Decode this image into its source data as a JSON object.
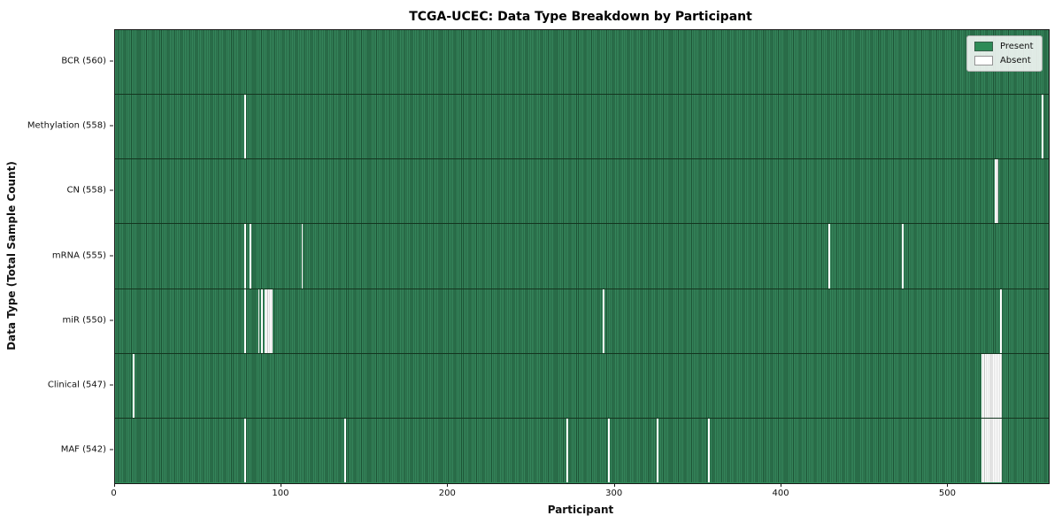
{
  "chart_data": {
    "type": "heatmap",
    "title": "TCGA-UCEC: Data Type Breakdown by Participant",
    "xlabel": "Participant",
    "ylabel": "Data Type (Total Sample Count)",
    "n_participants": 560,
    "x_ticks": [
      0,
      100,
      200,
      300,
      400,
      500
    ],
    "legend_position": "upper right",
    "grid": false,
    "legend": [
      {
        "label": "Present",
        "color": "#2e8b57"
      },
      {
        "label": "Absent",
        "color": "#ffffff"
      }
    ],
    "colors": {
      "present_fill": "#2e8b57",
      "present_stripe_light": "#35855b",
      "present_stripe_dark": "#1d5335",
      "absent_fill": "#ffffff",
      "row_separator": "#14351f",
      "spine": "#1a1a1a"
    },
    "rows": [
      {
        "label": "BCR (560)",
        "data_type": "BCR",
        "total_samples": 560,
        "absent_participants": []
      },
      {
        "label": "Methylation (558)",
        "data_type": "Methylation",
        "total_samples": 558,
        "absent_participants": [
          78,
          556
        ]
      },
      {
        "label": "CN (558)",
        "data_type": "CN",
        "total_samples": 558,
        "absent_participants": [
          528,
          529
        ]
      },
      {
        "label": "mRNA (555)",
        "data_type": "mRNA",
        "total_samples": 555,
        "absent_participants": [
          78,
          81,
          112,
          428,
          472
        ]
      },
      {
        "label": "miR (550)",
        "data_type": "miR",
        "total_samples": 550,
        "absent_participants": [
          78,
          86,
          88,
          90,
          91,
          92,
          93,
          94,
          293,
          531
        ]
      },
      {
        "label": "Clinical (547)",
        "data_type": "Clinical",
        "total_samples": 547,
        "absent_participants": [
          11,
          520,
          521,
          522,
          523,
          524,
          525,
          526,
          527,
          528,
          529,
          530,
          531
        ]
      },
      {
        "label": "MAF (542)",
        "data_type": "MAF",
        "total_samples": 542,
        "absent_participants": [
          78,
          138,
          271,
          296,
          325,
          356,
          520,
          521,
          522,
          523,
          524,
          525,
          526,
          527,
          528,
          529,
          530,
          531
        ]
      }
    ]
  }
}
